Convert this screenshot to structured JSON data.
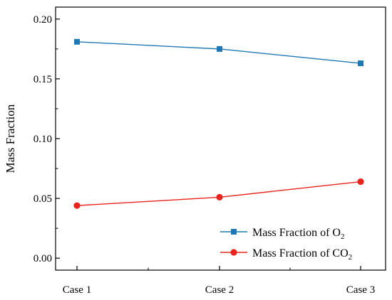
{
  "chart_data": {
    "type": "line",
    "categories": [
      "Case 1",
      "Case 2",
      "Case 3"
    ],
    "series": [
      {
        "name_main": "Mass Fraction of O",
        "name_sub": "2",
        "values": [
          0.181,
          0.175,
          0.163
        ],
        "color": "#1f78b4",
        "marker": "square"
      },
      {
        "name_main": "Mass Fraction of CO",
        "name_sub": "2",
        "values": [
          0.044,
          0.051,
          0.064
        ],
        "color": "#e8241e",
        "marker": "circle"
      }
    ],
    "ylabel": "Mass Fraction",
    "xlabel": "",
    "ylim": [
      -0.01,
      0.21
    ],
    "yticks": [
      0.0,
      0.05,
      0.1,
      0.15,
      0.2
    ],
    "ytick_labels": [
      "0.00",
      "0.05",
      "0.10",
      "0.15",
      "0.20"
    ],
    "grid": false,
    "legend_position": "bottom-right"
  }
}
